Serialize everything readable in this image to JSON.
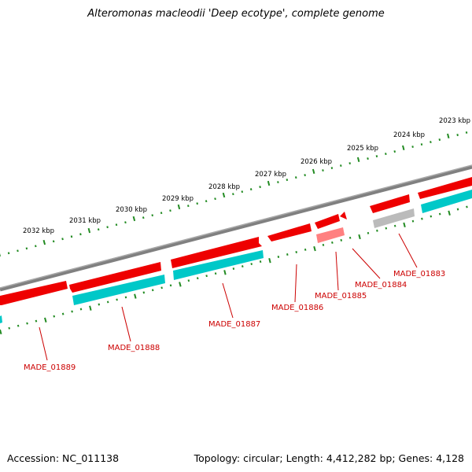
{
  "title": "Alteromonas macleodii 'Deep ecotype', complete genome",
  "footer": {
    "accession": "Accession: NC_011138",
    "summary": "Topology: circular; Length: 4,412,282 bp; Genes: 4,128"
  },
  "colors": {
    "backbone": "#808080",
    "cds_forward": "#ff0000",
    "rna": "#00cccc",
    "pseudo": "#ff8080",
    "other": "#bbbbbb",
    "tick": "#228b22",
    "label": "#cc0000"
  },
  "ruler_labels": [
    "2023 kbp",
    "2024 kbp",
    "2025 kbp",
    "2026 kbp",
    "2027 kbp",
    "2028 kbp",
    "2029 kbp",
    "2030 kbp",
    "2031 kbp",
    "2032 kbp"
  ],
  "gene_labels": [
    "MADE_01883",
    "MADE_01884",
    "MADE_01885",
    "MADE_01886",
    "MADE_01887",
    "MADE_01888",
    "MADE_01889"
  ]
}
